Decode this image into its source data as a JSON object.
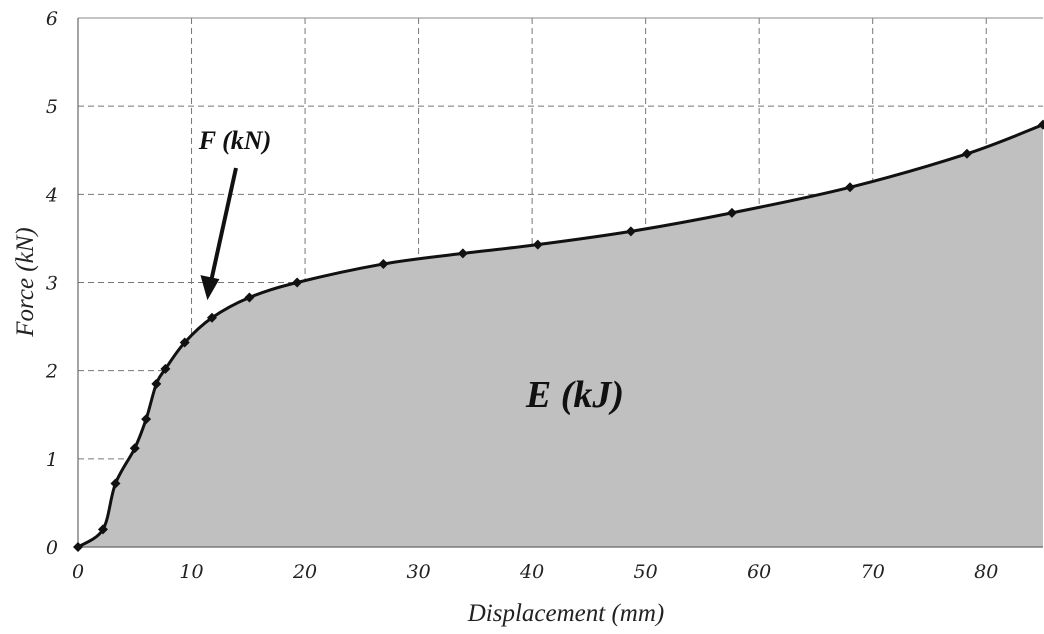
{
  "chart_data": {
    "type": "area",
    "xlabel": "Displacement (mm)",
    "ylabel": "Force (kN)",
    "xlim": [
      0,
      85
    ],
    "ylim": [
      0,
      6
    ],
    "x_ticks": [
      0,
      10,
      20,
      30,
      40,
      50,
      60,
      70,
      80
    ],
    "y_ticks": [
      0,
      1,
      2,
      3,
      4,
      5,
      6
    ],
    "grid": true,
    "series": [
      {
        "x": [
          0,
          2.2,
          3.3,
          5.0,
          6.0,
          6.9,
          7.7,
          9.4,
          11.8,
          15.1,
          19.3,
          26.9,
          33.9,
          40.5,
          48.7,
          57.6,
          68.0,
          78.3,
          85.0
        ],
        "y": [
          0,
          0.2,
          0.72,
          1.12,
          1.45,
          1.85,
          2.02,
          2.32,
          2.6,
          2.83,
          3.0,
          3.21,
          3.33,
          3.43,
          3.58,
          3.79,
          4.08,
          4.46,
          4.79
        ]
      }
    ],
    "annotations": [
      {
        "text": "F (kN)",
        "x": 11.4,
        "y": 2.8
      },
      {
        "text": "E (kJ)",
        "x": 43.5,
        "y": 1.75
      }
    ],
    "colors": {
      "area": "#c0c0c0",
      "line": "#111111",
      "marker": "#111111",
      "grid": "#777777"
    }
  }
}
